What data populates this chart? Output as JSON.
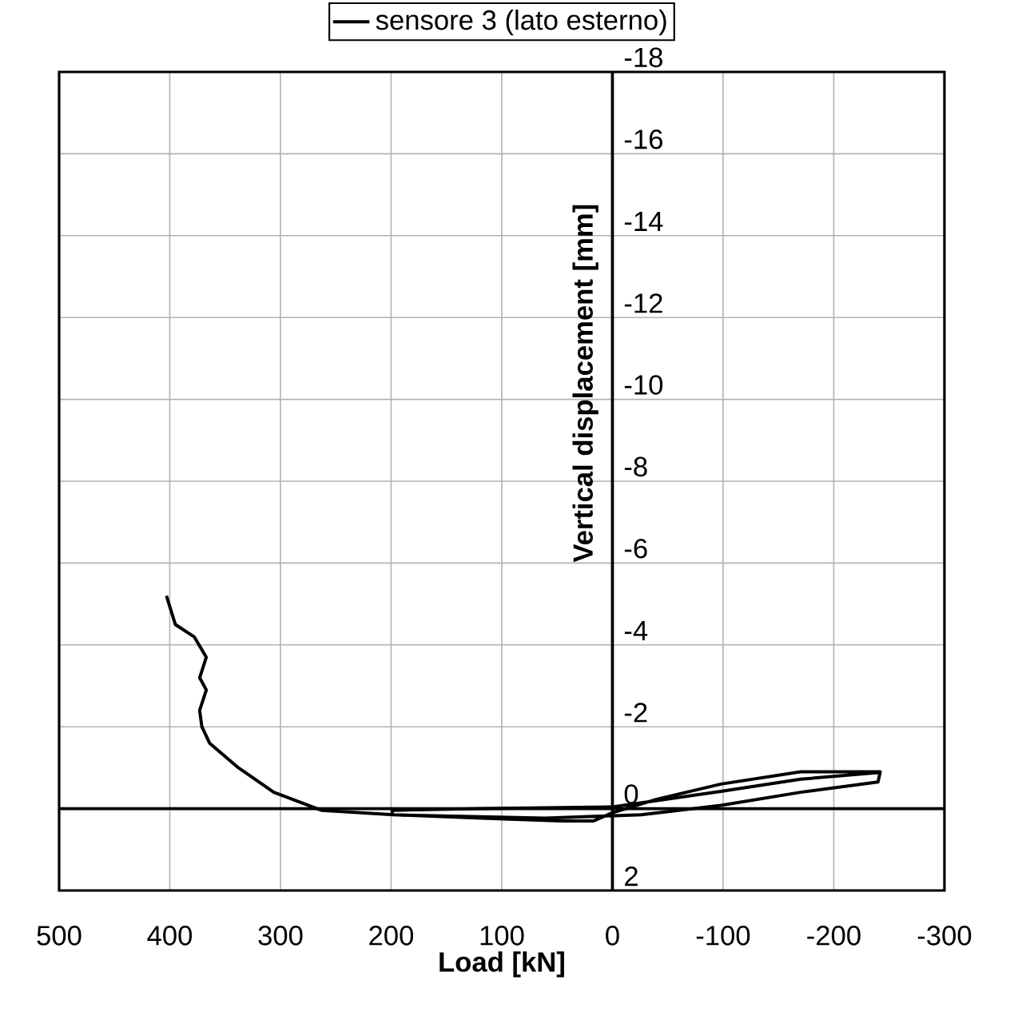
{
  "chart_data": {
    "type": "line",
    "xlabel": "Load [kN]",
    "ylabel": "Vertical displacement [mm]",
    "xlim": [
      500,
      -300
    ],
    "ylim": [
      2,
      -18
    ],
    "xticks": [
      500,
      400,
      300,
      200,
      100,
      0,
      -100,
      -200,
      -300
    ],
    "yticks": [
      2,
      0,
      -2,
      -4,
      -6,
      -8,
      -10,
      -12,
      -14,
      -16,
      -18
    ],
    "grid": true,
    "legend": "top",
    "line_style": "solid",
    "series": [
      {
        "name": "sensore 3 (lato esterno)",
        "color": "#000000",
        "x": [
          403,
          395,
          378,
          367,
          373,
          367,
          373,
          371,
          364,
          338,
          306,
          263,
          198,
          118,
          46,
          17,
          0,
          -40,
          -98,
          -170,
          -242,
          -240,
          -170,
          -98,
          -26,
          61,
          118,
          199,
          199,
          118,
          0,
          -98,
          -170,
          -240
        ],
        "values": [
          -5.2,
          -4.5,
          -4.2,
          -3.7,
          -3.2,
          -2.9,
          -2.4,
          -2.0,
          -1.6,
          -1.0,
          -0.4,
          0.04,
          0.15,
          0.23,
          0.3,
          0.3,
          0.1,
          -0.23,
          -0.6,
          -0.9,
          -0.9,
          -0.65,
          -0.4,
          -0.08,
          0.15,
          0.23,
          0.2,
          0.15,
          0.04,
          0,
          -0.04,
          -0.42,
          -0.72,
          -0.88
        ]
      }
    ]
  }
}
